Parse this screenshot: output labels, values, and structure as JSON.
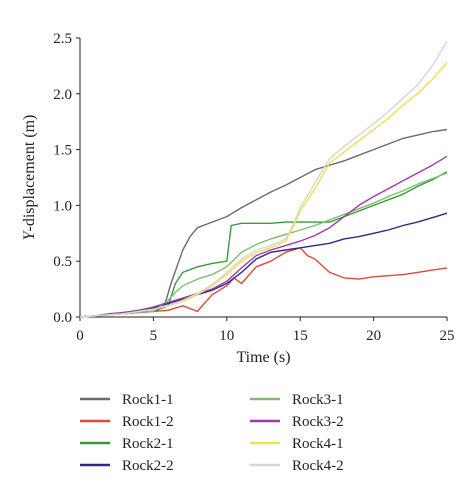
{
  "chart_data": {
    "type": "line",
    "title": "",
    "xlabel": "Time (s)",
    "ylabel_italic_part": "Y",
    "ylabel_rest": "-displacement (m)",
    "xlim": [
      0,
      25
    ],
    "ylim": [
      0,
      2.5
    ],
    "x_ticks": [
      0,
      5,
      10,
      15,
      20,
      25
    ],
    "x_tick_labels": [
      "0",
      "5",
      "10",
      "15",
      "20",
      "25"
    ],
    "y_ticks": [
      0,
      0.5,
      1.0,
      1.5,
      2.0,
      2.5
    ],
    "y_tick_labels": [
      "0.0",
      "0.5",
      "1.0",
      "1.5",
      "2.0",
      "2.5"
    ],
    "grid": false,
    "legend_placement": "bottom",
    "series": [
      {
        "name": "Rock1-1",
        "color": "#6b6b6b",
        "x": [
          0,
          1,
          2,
          3,
          4,
          5,
          5.8,
          6.2,
          7.0,
          7.5,
          8.0,
          9.0,
          10.0,
          11.0,
          12.0,
          13.0,
          14.0,
          15.0,
          16.0,
          17.0,
          18.0,
          19.0,
          20.0,
          21.0,
          22.0,
          23.0,
          24.0,
          25.0
        ],
        "y": [
          0,
          0.01,
          0.03,
          0.04,
          0.05,
          0.07,
          0.12,
          0.3,
          0.6,
          0.72,
          0.8,
          0.85,
          0.9,
          0.98,
          1.05,
          1.12,
          1.18,
          1.25,
          1.32,
          1.36,
          1.4,
          1.45,
          1.5,
          1.55,
          1.6,
          1.63,
          1.66,
          1.68
        ]
      },
      {
        "name": "Rock1-2",
        "color": "#d94b3a",
        "x": [
          0,
          1,
          2,
          3,
          4,
          5,
          6,
          7,
          8,
          9,
          10,
          10.5,
          11,
          12,
          13,
          14,
          15,
          15.5,
          16,
          17,
          18,
          19,
          20,
          21,
          22,
          23,
          24,
          25
        ],
        "y": [
          0,
          0.01,
          0.02,
          0.03,
          0.04,
          0.05,
          0.06,
          0.1,
          0.05,
          0.2,
          0.28,
          0.35,
          0.3,
          0.45,
          0.5,
          0.58,
          0.62,
          0.55,
          0.52,
          0.4,
          0.35,
          0.34,
          0.36,
          0.37,
          0.38,
          0.4,
          0.42,
          0.44
        ]
      },
      {
        "name": "Rock2-1",
        "color": "#3a9a3a",
        "x": [
          0,
          1,
          2,
          3,
          4,
          5,
          6,
          6.5,
          7,
          8,
          9,
          10,
          10.3,
          11,
          12,
          13,
          14,
          15,
          16,
          17,
          18,
          19,
          20,
          21,
          22,
          23,
          24,
          25
        ],
        "y": [
          0,
          0.01,
          0.02,
          0.03,
          0.04,
          0.05,
          0.1,
          0.3,
          0.4,
          0.45,
          0.48,
          0.5,
          0.82,
          0.84,
          0.84,
          0.84,
          0.85,
          0.85,
          0.85,
          0.85,
          0.9,
          0.95,
          1.0,
          1.05,
          1.1,
          1.17,
          1.23,
          1.3
        ]
      },
      {
        "name": "Rock2-2",
        "color": "#2b2a8a",
        "x": [
          0,
          1,
          2,
          3,
          4,
          5,
          6,
          7,
          8,
          9,
          10,
          11,
          12,
          13,
          14,
          15,
          16,
          17,
          18,
          19,
          20,
          21,
          22,
          23,
          24,
          25
        ],
        "y": [
          0,
          0.01,
          0.02,
          0.04,
          0.06,
          0.08,
          0.12,
          0.16,
          0.2,
          0.24,
          0.3,
          0.4,
          0.52,
          0.58,
          0.6,
          0.62,
          0.64,
          0.66,
          0.7,
          0.72,
          0.75,
          0.78,
          0.82,
          0.85,
          0.89,
          0.93
        ]
      },
      {
        "name": "Rock3-1",
        "color": "#7ac16a",
        "x": [
          0,
          1,
          2,
          3,
          4,
          5,
          6,
          6.5,
          7,
          8,
          9,
          10,
          11,
          12,
          13,
          14,
          15,
          16,
          17,
          18,
          19,
          20,
          21,
          22,
          23,
          24,
          25
        ],
        "y": [
          0,
          0.01,
          0.02,
          0.03,
          0.04,
          0.05,
          0.15,
          0.22,
          0.28,
          0.34,
          0.38,
          0.45,
          0.58,
          0.65,
          0.7,
          0.74,
          0.78,
          0.82,
          0.87,
          0.92,
          0.97,
          1.02,
          1.08,
          1.13,
          1.19,
          1.24,
          1.29
        ]
      },
      {
        "name": "Rock3-2",
        "color": "#a03aa8",
        "x": [
          0,
          1,
          2,
          3,
          4,
          5,
          6,
          7,
          8,
          9,
          10,
          11,
          12,
          13,
          14,
          15,
          16,
          17,
          18,
          19,
          20,
          21,
          22,
          23,
          24,
          25
        ],
        "y": [
          0,
          0.01,
          0.02,
          0.04,
          0.06,
          0.09,
          0.13,
          0.17,
          0.21,
          0.25,
          0.32,
          0.44,
          0.55,
          0.6,
          0.64,
          0.68,
          0.73,
          0.8,
          0.9,
          1.0,
          1.08,
          1.15,
          1.22,
          1.29,
          1.36,
          1.44
        ]
      },
      {
        "name": "Rock4-1",
        "color": "#f0e04a",
        "x": [
          0,
          1,
          2,
          3,
          4,
          5,
          6,
          7,
          8,
          9,
          10,
          11,
          12,
          13,
          14,
          14.5,
          15,
          16,
          17,
          18,
          19,
          20,
          21,
          22,
          23,
          24,
          25
        ],
        "y": [
          0,
          0.01,
          0.02,
          0.03,
          0.05,
          0.07,
          0.1,
          0.14,
          0.2,
          0.28,
          0.38,
          0.5,
          0.58,
          0.62,
          0.68,
          0.8,
          0.95,
          1.15,
          1.38,
          1.48,
          1.58,
          1.68,
          1.78,
          1.9,
          2.0,
          2.13,
          2.28
        ]
      },
      {
        "name": "Rock4-2",
        "color": "#d6d6d6",
        "x": [
          0,
          1,
          2,
          3,
          4,
          5,
          6,
          7,
          8,
          9,
          10,
          11,
          12,
          13,
          14,
          14.5,
          15,
          16,
          17,
          18,
          19,
          20,
          21,
          22,
          23,
          24,
          25
        ],
        "y": [
          0,
          0.01,
          0.02,
          0.03,
          0.05,
          0.07,
          0.1,
          0.15,
          0.21,
          0.29,
          0.4,
          0.52,
          0.6,
          0.64,
          0.7,
          0.82,
          0.98,
          1.2,
          1.42,
          1.53,
          1.63,
          1.73,
          1.84,
          1.96,
          2.08,
          2.25,
          2.47
        ]
      }
    ]
  }
}
